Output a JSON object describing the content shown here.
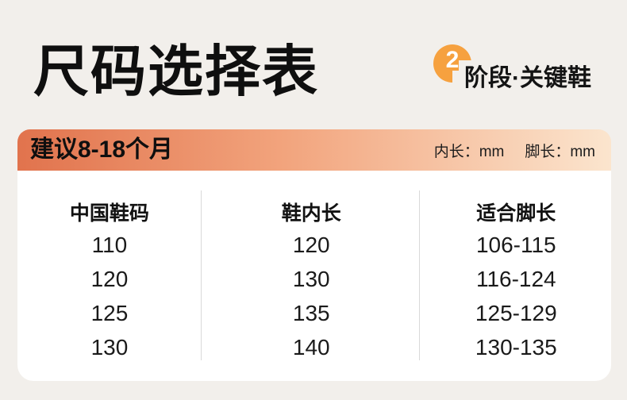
{
  "page": {
    "title": "尺码选择表",
    "background_color": "#f2efeb"
  },
  "stage_badge": {
    "number": "2",
    "label": "阶段·关键鞋",
    "circle_color": "#f6a13f"
  },
  "banner": {
    "suggestion": "建议8-18个月",
    "inner_length_unit": "内长：mm",
    "foot_length_unit": "脚长：mm",
    "gradient_left": "#e1734d",
    "gradient_mid": "#f2a47d",
    "gradient_right": "#fbe5ce"
  },
  "size_table": {
    "headers": [
      "中国鞋码",
      "鞋内长",
      "适合脚长"
    ],
    "rows": [
      [
        "110",
        "120",
        "106-115"
      ],
      [
        "120",
        "130",
        "116-124"
      ],
      [
        "125",
        "135",
        "125-129"
      ],
      [
        "130",
        "140",
        "130-135"
      ]
    ]
  },
  "chart_data": {
    "type": "table",
    "title": "尺码选择表",
    "subtitle": "建议8-18个月 · 2阶段·关键鞋",
    "unit_note": "内长：mm 脚长：mm",
    "columns": [
      "中国鞋码",
      "鞋内长",
      "适合脚长"
    ],
    "rows": [
      [
        110,
        120,
        "106-115"
      ],
      [
        120,
        130,
        "116-124"
      ],
      [
        125,
        135,
        "125-129"
      ],
      [
        130,
        140,
        "130-135"
      ]
    ]
  }
}
